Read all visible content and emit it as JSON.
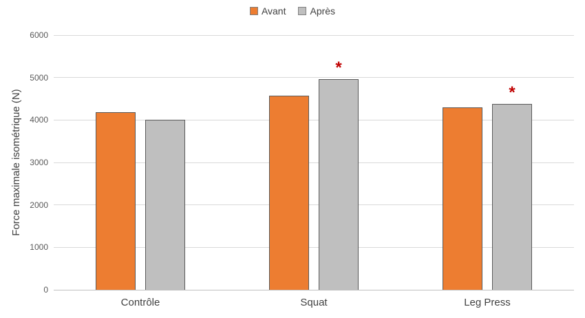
{
  "chart_data": {
    "type": "bar",
    "title": "",
    "categories": [
      "Contrôle",
      "Squat",
      "Leg Press"
    ],
    "series": [
      {
        "name": "Avant",
        "color": "#ED7D31",
        "border_color": "#595959",
        "values": [
          4180,
          4580,
          4300
        ]
      },
      {
        "name": "Après",
        "color": "#BFBFBF",
        "border_color": "#595959",
        "values": [
          4010,
          4960,
          4380
        ]
      }
    ],
    "xlabel": "",
    "ylabel": "Force maximale isométrique (N)",
    "ylim": [
      0,
      6000
    ],
    "yticks": [
      0,
      1000,
      2000,
      3000,
      4000,
      5000,
      6000
    ],
    "grid": true,
    "gridline_color": "#D9D9D9",
    "axis_line_color": "#BFBFBF",
    "tick_label_color": "#595959",
    "category_label_color": "#404040",
    "legend_position": "top",
    "annotations": [
      {
        "category_index": 1,
        "series_index": 1,
        "symbol": "*",
        "color": "#C00000"
      },
      {
        "category_index": 2,
        "series_index": 1,
        "symbol": "*",
        "color": "#C00000"
      }
    ]
  }
}
